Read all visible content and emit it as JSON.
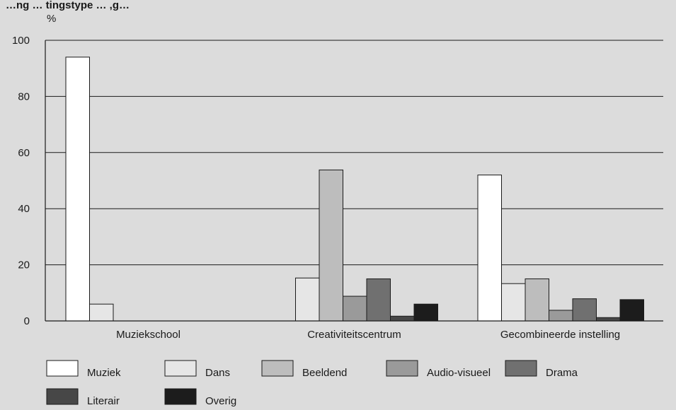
{
  "chart_data": {
    "type": "bar",
    "title": "…ng … tingstype … ,g…",
    "ylabel": "%",
    "xlabel": "",
    "ylim": [
      0,
      100
    ],
    "yticks": [
      0,
      20,
      40,
      60,
      80,
      100
    ],
    "grid": true,
    "legend_position": "bottom",
    "categories": [
      "Muziekschool",
      "Creativiteitscentrum",
      "Gecombineerde instelling"
    ],
    "series": [
      {
        "name": "Muziek",
        "color": "#ffffff",
        "values": [
          94,
          0,
          52
        ]
      },
      {
        "name": "Dans",
        "color": "#e6e6e6",
        "values": [
          6,
          15.3,
          13.3
        ]
      },
      {
        "name": "Beeldend",
        "color": "#bdbdbd",
        "values": [
          0,
          53.8,
          15
        ]
      },
      {
        "name": "Audio-visueel",
        "color": "#9a9a9a",
        "values": [
          0,
          8.8,
          3.8
        ]
      },
      {
        "name": "Drama",
        "color": "#707070",
        "values": [
          0,
          15,
          7.9
        ]
      },
      {
        "name": "Literair",
        "color": "#474747",
        "values": [
          0,
          1.7,
          1.2
        ]
      },
      {
        "name": "Overig",
        "color": "#1c1c1c",
        "values": [
          0,
          6,
          7.6
        ]
      }
    ]
  }
}
